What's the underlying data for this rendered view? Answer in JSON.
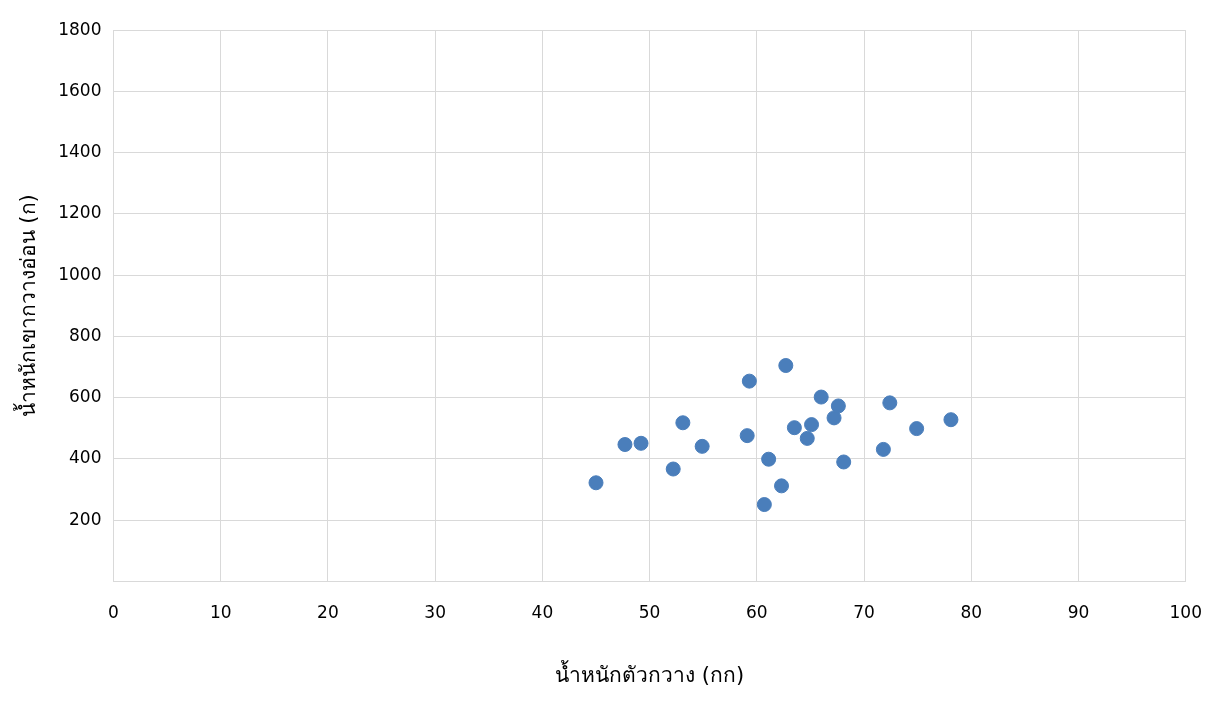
{
  "chart_data": {
    "type": "scatter",
    "xlabel": "น้ำหนักตัวกวาง (กก)",
    "ylabel": "น้ำหนักเขากวางอ่อน (ก)",
    "series": [
      {
        "color": "#4a7ebb",
        "x": [
          45.0,
          47.7,
          49.2,
          52.2,
          53.1,
          54.9,
          59.1,
          59.3,
          60.7,
          61.1,
          62.3,
          62.7,
          63.5,
          64.7,
          65.1,
          66.0,
          67.2,
          67.6,
          68.1,
          71.8,
          72.4,
          74.9,
          78.1
        ],
        "values": [
          322,
          447,
          451,
          367,
          518,
          441,
          476,
          654,
          251,
          399,
          312,
          705,
          502,
          467,
          512,
          602,
          534,
          573,
          390,
          431,
          583,
          499,
          528
        ]
      }
    ],
    "xlim": [
      0,
      100
    ],
    "xticks": [
      0,
      10,
      20,
      30,
      40,
      50,
      60,
      70,
      80,
      90,
      100
    ],
    "ylim": [
      0,
      1800
    ],
    "yticks": [
      {
        "value": 0,
        "label": null
      },
      200,
      400,
      600,
      800,
      1000,
      1200,
      1400,
      1600,
      1800
    ],
    "grid": true,
    "marker": "circle",
    "legend": false
  }
}
